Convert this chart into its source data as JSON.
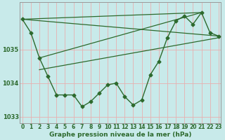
{
  "title": "Graphe pression niveau de la mer (hPa)",
  "bg_color": "#c8eaea",
  "grid_color": "#e8b0b0",
  "line_color": "#2d6a2d",
  "ylim": [
    1032.8,
    1036.4
  ],
  "xlim": [
    -0.3,
    23.3
  ],
  "yticks": [
    1033,
    1034,
    1035
  ],
  "xticks": [
    0,
    1,
    2,
    3,
    4,
    5,
    6,
    7,
    8,
    9,
    10,
    11,
    12,
    13,
    14,
    15,
    16,
    17,
    18,
    19,
    20,
    21,
    22,
    23
  ],
  "series_main_x": [
    0,
    1,
    2,
    3,
    4,
    5,
    6,
    7,
    8,
    9,
    10,
    11,
    12,
    13,
    14,
    15,
    16,
    17,
    18,
    19,
    20,
    21,
    22,
    23
  ],
  "series_main_y": [
    1035.9,
    1035.5,
    1034.75,
    1034.2,
    1033.65,
    1033.65,
    1033.65,
    1033.3,
    1033.45,
    1033.7,
    1033.95,
    1034.0,
    1033.6,
    1033.35,
    1033.5,
    1034.25,
    1034.65,
    1035.35,
    1035.85,
    1036.0,
    1035.75,
    1036.1,
    1035.5,
    1035.4
  ],
  "line1_x": [
    0,
    21
  ],
  "line1_y": [
    1035.9,
    1036.1
  ],
  "line2_x": [
    0,
    23
  ],
  "line2_y": [
    1035.9,
    1035.4
  ],
  "line3_x": [
    2,
    23
  ],
  "line3_y": [
    1034.4,
    1035.35
  ],
  "line4_x": [
    2,
    21
  ],
  "line4_y": [
    1034.75,
    1036.1
  ],
  "marker": "D",
  "marker_size": 2.5,
  "font_color": "#2d6a2d",
  "tick_fontsize": 5.5,
  "title_fontsize": 6.5
}
